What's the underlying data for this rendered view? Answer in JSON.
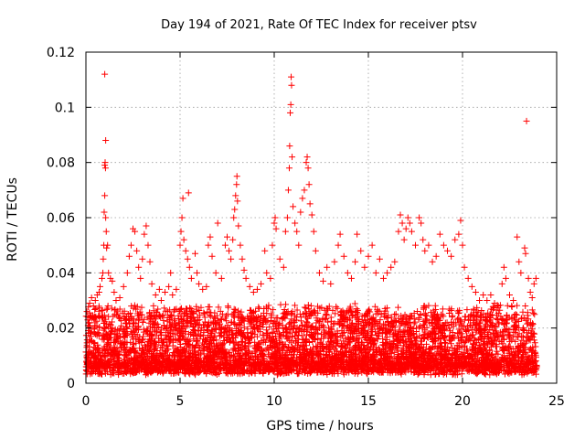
{
  "chart_data": {
    "type": "scatter",
    "title": "Day 194 of 2021, Rate Of TEC Index for receiver ptsv",
    "xlabel": "GPS time / hours",
    "ylabel": "ROTI / TECUs",
    "xlim": [
      0,
      25
    ],
    "ylim": [
      0,
      0.12
    ],
    "x_ticks": [
      0,
      5,
      10,
      15,
      20,
      25
    ],
    "x_tick_labels": [
      "0",
      "5",
      "10",
      "15",
      "20",
      "25"
    ],
    "y_ticks": [
      0,
      0.02,
      0.04,
      0.06,
      0.08,
      0.1,
      0.12
    ],
    "y_tick_labels": [
      "0",
      "0.02",
      "0.04",
      "0.06",
      "0.08",
      "0.1",
      "0.12"
    ],
    "grid": true,
    "marker": "plus",
    "color": "#ff0000",
    "series": [
      {
        "name": "ROTI",
        "points": [
          [
            0.05,
            0.026
          ],
          [
            0.1,
            0.024
          ],
          [
            0.15,
            0.02
          ],
          [
            0.2,
            0.029
          ],
          [
            0.3,
            0.031
          ],
          [
            0.4,
            0.028
          ],
          [
            0.5,
            0.03
          ],
          [
            0.6,
            0.032
          ],
          [
            0.7,
            0.033
          ],
          [
            0.75,
            0.035
          ],
          [
            0.85,
            0.038
          ],
          [
            0.9,
            0.04
          ],
          [
            0.92,
            0.045
          ],
          [
            0.95,
            0.05
          ],
          [
            0.97,
            0.062
          ],
          [
            1.0,
            0.068
          ],
          [
            1.0,
            0.079
          ],
          [
            1.02,
            0.08
          ],
          [
            1.04,
            0.078
          ],
          [
            1.05,
            0.088
          ],
          [
            1.0,
            0.112
          ],
          [
            1.05,
            0.06
          ],
          [
            1.08,
            0.055
          ],
          [
            1.1,
            0.049
          ],
          [
            1.15,
            0.05
          ],
          [
            1.2,
            0.04
          ],
          [
            1.3,
            0.038
          ],
          [
            1.4,
            0.037
          ],
          [
            1.5,
            0.033
          ],
          [
            1.6,
            0.03
          ],
          [
            1.8,
            0.031
          ],
          [
            2.0,
            0.035
          ],
          [
            2.2,
            0.04
          ],
          [
            2.3,
            0.046
          ],
          [
            2.4,
            0.05
          ],
          [
            2.5,
            0.056
          ],
          [
            2.6,
            0.055
          ],
          [
            2.7,
            0.048
          ],
          [
            2.8,
            0.042
          ],
          [
            2.9,
            0.038
          ],
          [
            3.0,
            0.045
          ],
          [
            3.1,
            0.054
          ],
          [
            3.2,
            0.057
          ],
          [
            3.3,
            0.05
          ],
          [
            3.4,
            0.044
          ],
          [
            3.5,
            0.036
          ],
          [
            3.7,
            0.032
          ],
          [
            3.9,
            0.034
          ],
          [
            4.0,
            0.03
          ],
          [
            4.2,
            0.033
          ],
          [
            4.4,
            0.035
          ],
          [
            4.5,
            0.04
          ],
          [
            4.6,
            0.032
          ],
          [
            4.8,
            0.034
          ],
          [
            5.0,
            0.05
          ],
          [
            5.05,
            0.055
          ],
          [
            5.1,
            0.06
          ],
          [
            5.15,
            0.067
          ],
          [
            5.2,
            0.052
          ],
          [
            5.3,
            0.048
          ],
          [
            5.4,
            0.045
          ],
          [
            5.45,
            0.069
          ],
          [
            5.5,
            0.042
          ],
          [
            5.6,
            0.038
          ],
          [
            5.8,
            0.047
          ],
          [
            5.9,
            0.04
          ],
          [
            6.0,
            0.036
          ],
          [
            6.2,
            0.034
          ],
          [
            6.4,
            0.035
          ],
          [
            6.5,
            0.05
          ],
          [
            6.6,
            0.053
          ],
          [
            6.7,
            0.046
          ],
          [
            6.9,
            0.04
          ],
          [
            7.0,
            0.058
          ],
          [
            7.2,
            0.038
          ],
          [
            7.4,
            0.05
          ],
          [
            7.5,
            0.053
          ],
          [
            7.6,
            0.048
          ],
          [
            7.7,
            0.045
          ],
          [
            7.8,
            0.052
          ],
          [
            7.85,
            0.06
          ],
          [
            7.9,
            0.063
          ],
          [
            7.95,
            0.068
          ],
          [
            8.0,
            0.072
          ],
          [
            8.02,
            0.075
          ],
          [
            8.05,
            0.066
          ],
          [
            8.1,
            0.057
          ],
          [
            8.2,
            0.05
          ],
          [
            8.3,
            0.045
          ],
          [
            8.4,
            0.041
          ],
          [
            8.5,
            0.038
          ],
          [
            8.7,
            0.035
          ],
          [
            8.9,
            0.033
          ],
          [
            9.1,
            0.034
          ],
          [
            9.3,
            0.036
          ],
          [
            9.5,
            0.048
          ],
          [
            9.6,
            0.04
          ],
          [
            9.8,
            0.038
          ],
          [
            9.9,
            0.05
          ],
          [
            10.0,
            0.058
          ],
          [
            10.05,
            0.06
          ],
          [
            10.1,
            0.056
          ],
          [
            10.3,
            0.045
          ],
          [
            10.5,
            0.042
          ],
          [
            10.6,
            0.055
          ],
          [
            10.7,
            0.06
          ],
          [
            10.75,
            0.07
          ],
          [
            10.8,
            0.078
          ],
          [
            10.82,
            0.086
          ],
          [
            10.85,
            0.098
          ],
          [
            10.88,
            0.101
          ],
          [
            10.9,
            0.111
          ],
          [
            10.92,
            0.108
          ],
          [
            10.95,
            0.082
          ],
          [
            11.0,
            0.064
          ],
          [
            11.1,
            0.058
          ],
          [
            11.2,
            0.055
          ],
          [
            11.3,
            0.05
          ],
          [
            11.4,
            0.062
          ],
          [
            11.5,
            0.067
          ],
          [
            11.6,
            0.07
          ],
          [
            11.7,
            0.08
          ],
          [
            11.75,
            0.082
          ],
          [
            11.8,
            0.078
          ],
          [
            11.85,
            0.072
          ],
          [
            11.9,
            0.065
          ],
          [
            12.0,
            0.061
          ],
          [
            12.1,
            0.055
          ],
          [
            12.2,
            0.048
          ],
          [
            12.4,
            0.04
          ],
          [
            12.6,
            0.037
          ],
          [
            12.8,
            0.042
          ],
          [
            13.0,
            0.036
          ],
          [
            13.2,
            0.044
          ],
          [
            13.4,
            0.05
          ],
          [
            13.5,
            0.054
          ],
          [
            13.7,
            0.046
          ],
          [
            13.9,
            0.04
          ],
          [
            14.1,
            0.038
          ],
          [
            14.3,
            0.044
          ],
          [
            14.4,
            0.054
          ],
          [
            14.6,
            0.048
          ],
          [
            14.8,
            0.042
          ],
          [
            15.0,
            0.046
          ],
          [
            15.2,
            0.05
          ],
          [
            15.4,
            0.04
          ],
          [
            15.6,
            0.045
          ],
          [
            15.8,
            0.038
          ],
          [
            16.0,
            0.04
          ],
          [
            16.2,
            0.042
          ],
          [
            16.4,
            0.044
          ],
          [
            16.6,
            0.055
          ],
          [
            16.7,
            0.061
          ],
          [
            16.8,
            0.058
          ],
          [
            16.9,
            0.052
          ],
          [
            17.0,
            0.056
          ],
          [
            17.1,
            0.06
          ],
          [
            17.2,
            0.058
          ],
          [
            17.3,
            0.055
          ],
          [
            17.5,
            0.05
          ],
          [
            17.7,
            0.06
          ],
          [
            17.8,
            0.058
          ],
          [
            17.9,
            0.052
          ],
          [
            18.0,
            0.048
          ],
          [
            18.2,
            0.05
          ],
          [
            18.4,
            0.044
          ],
          [
            18.6,
            0.046
          ],
          [
            18.8,
            0.054
          ],
          [
            19.0,
            0.05
          ],
          [
            19.2,
            0.048
          ],
          [
            19.4,
            0.046
          ],
          [
            19.6,
            0.052
          ],
          [
            19.8,
            0.054
          ],
          [
            19.9,
            0.059
          ],
          [
            20.0,
            0.05
          ],
          [
            20.1,
            0.042
          ],
          [
            20.3,
            0.038
          ],
          [
            20.5,
            0.035
          ],
          [
            20.7,
            0.033
          ],
          [
            20.9,
            0.03
          ],
          [
            21.1,
            0.032
          ],
          [
            21.3,
            0.03
          ],
          [
            21.5,
            0.032
          ],
          [
            21.7,
            0.029
          ],
          [
            21.9,
            0.028
          ],
          [
            22.1,
            0.036
          ],
          [
            22.2,
            0.042
          ],
          [
            22.3,
            0.038
          ],
          [
            22.5,
            0.032
          ],
          [
            22.7,
            0.03
          ],
          [
            22.9,
            0.053
          ],
          [
            23.0,
            0.044
          ],
          [
            23.1,
            0.04
          ],
          [
            23.3,
            0.049
          ],
          [
            23.35,
            0.047
          ],
          [
            23.4,
            0.095
          ],
          [
            23.5,
            0.038
          ],
          [
            23.6,
            0.033
          ],
          [
            23.7,
            0.031
          ],
          [
            23.8,
            0.036
          ],
          [
            23.9,
            0.038
          ]
        ]
      }
    ]
  }
}
